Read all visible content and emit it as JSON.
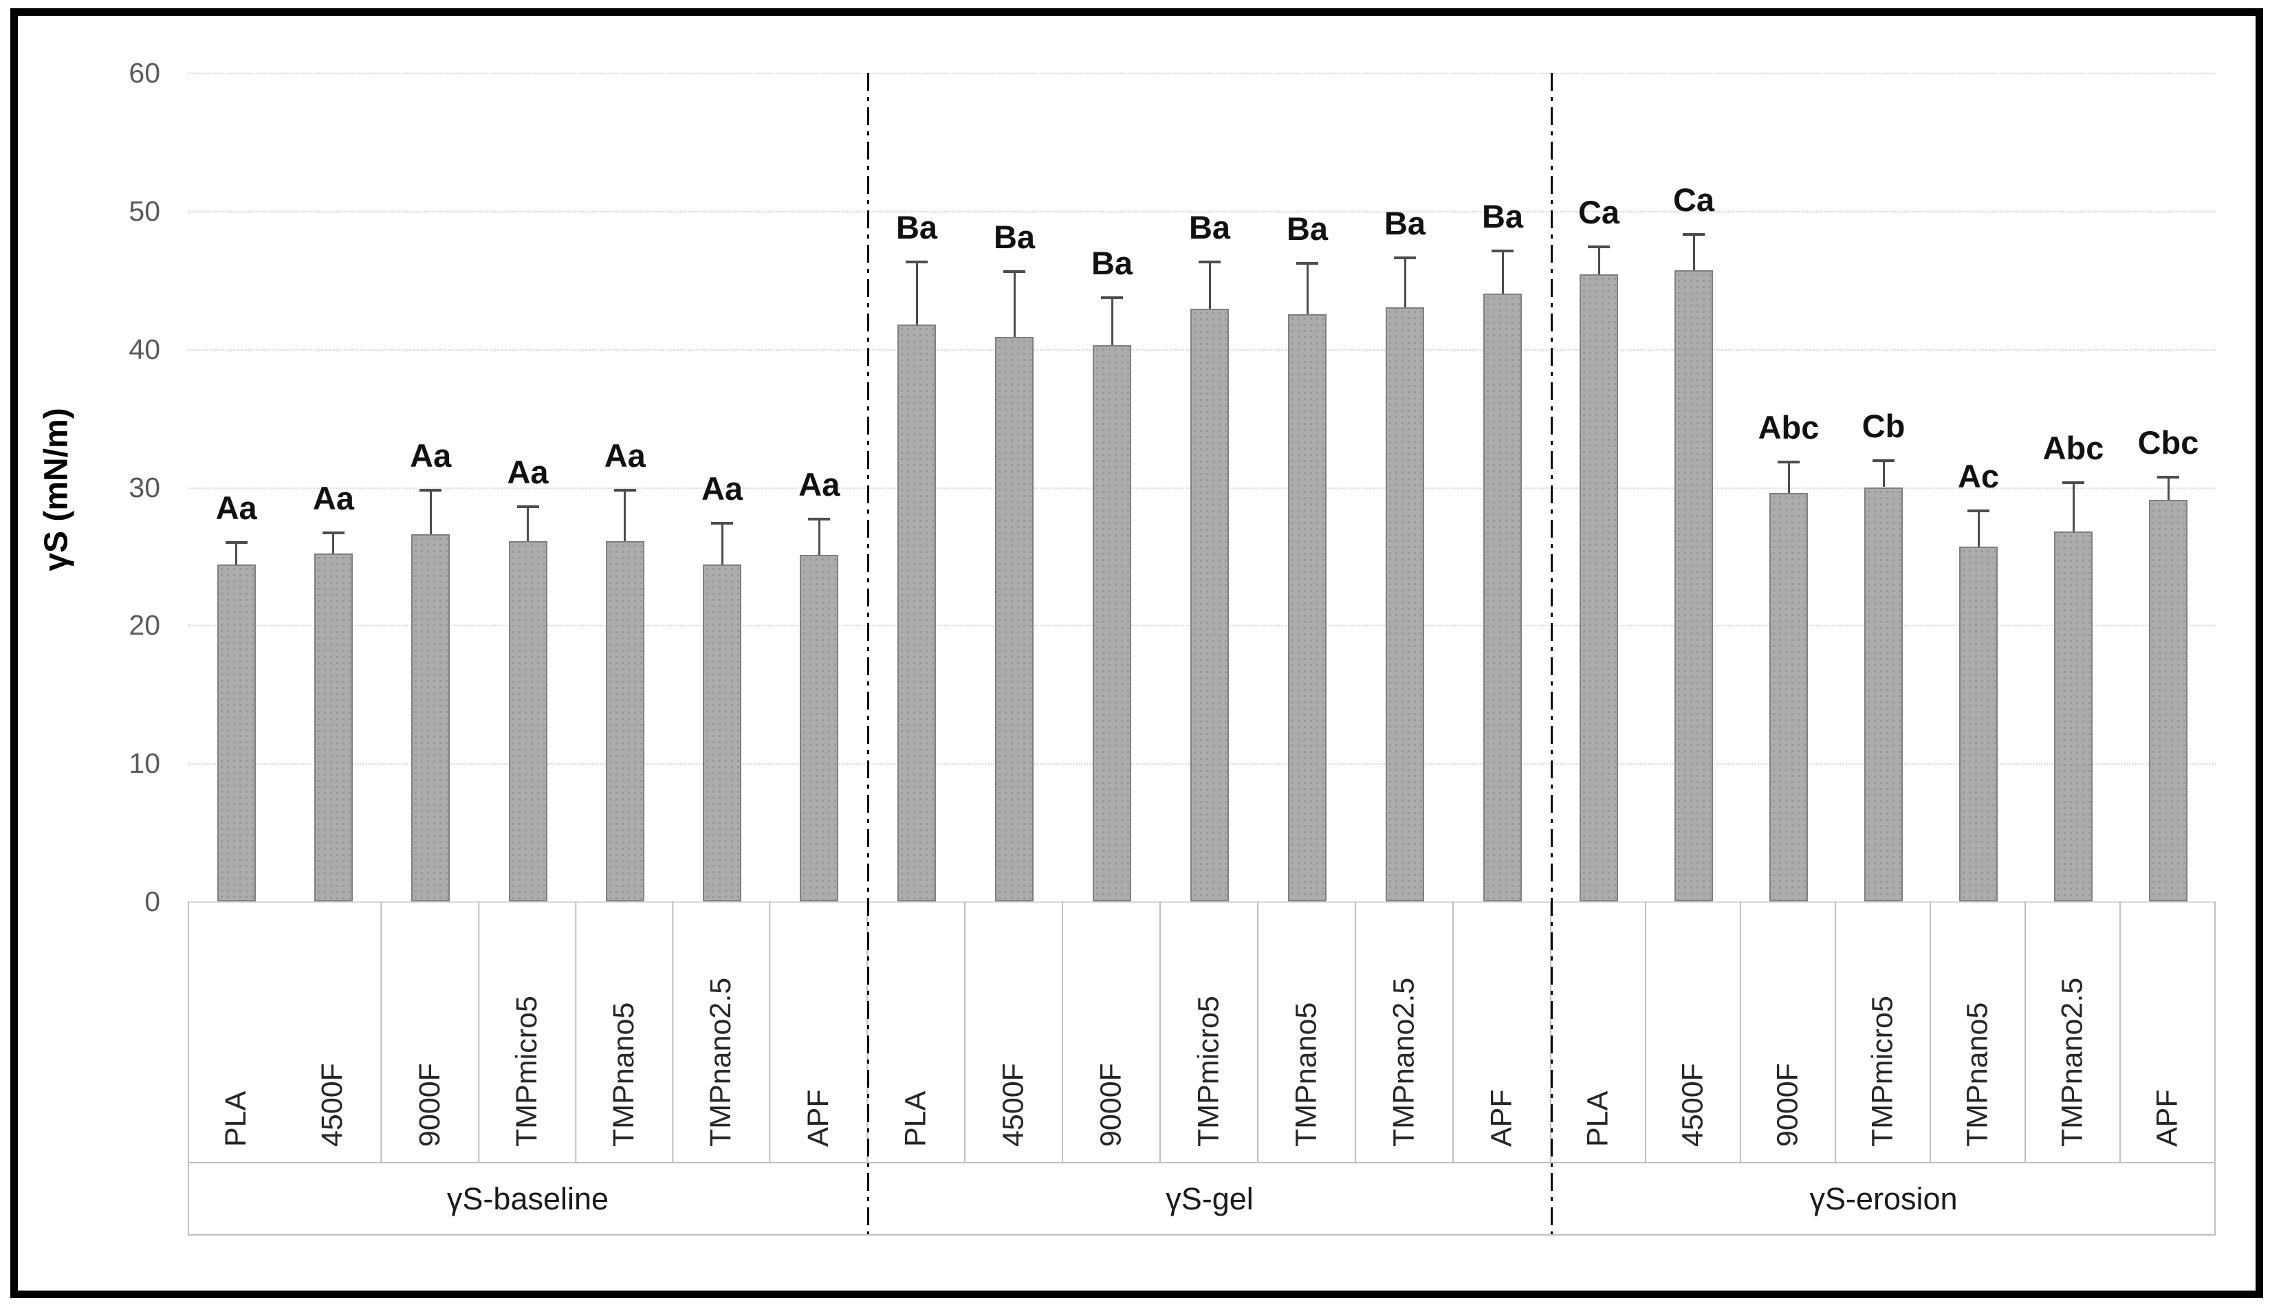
{
  "chart_data": {
    "type": "bar",
    "title": "",
    "ylabel": "γS (mN/m)",
    "xlabel": "",
    "ylim": [
      0,
      60
    ],
    "yticks": [
      0,
      10,
      20,
      30,
      40,
      50,
      60
    ],
    "grid": "horizontal dotted light-gray",
    "legend_position": "none",
    "error_bars": "upper only, with caps",
    "categories": [
      "PLA",
      "4500F",
      "9000F",
      "TMPmicro5",
      "TMPnano5",
      "TMPnano2.5",
      "APF"
    ],
    "groups": [
      {
        "label": "γS-baseline",
        "values": [
          24.4,
          25.2,
          26.6,
          26.1,
          26.1,
          24.4,
          25.1
        ],
        "errors_plus": [
          1.7,
          1.6,
          3.3,
          2.6,
          3.8,
          3.1,
          2.7
        ],
        "annotations": [
          "Aa",
          "Aa",
          "Aa",
          "Aa",
          "Aa",
          "Aa",
          "Aa"
        ]
      },
      {
        "label": "γS-gel",
        "values": [
          41.8,
          40.9,
          40.3,
          42.9,
          42.5,
          43.0,
          44.0
        ],
        "errors_plus": [
          4.6,
          4.8,
          3.5,
          3.5,
          3.8,
          3.7,
          3.2
        ],
        "annotations": [
          "Ba",
          "Ba",
          "Ba",
          "Ba",
          "Ba",
          "Ba",
          "Ba"
        ]
      },
      {
        "label": "γS-erosion",
        "values": [
          45.4,
          45.7,
          29.6,
          30.0,
          25.7,
          26.8,
          29.1
        ],
        "errors_plus": [
          2.1,
          2.7,
          2.3,
          2.0,
          2.7,
          3.6,
          1.7
        ],
        "annotations": [
          "Ca",
          "Ca",
          "Abc",
          "Cb",
          "Ac",
          "Abc",
          "Cbc"
        ]
      }
    ]
  },
  "colors": {
    "bar_fill": "#acacac",
    "bar_dot": "#969696",
    "bar_border": "#7f7f7f",
    "error_bar": "#4d4d4d",
    "gridline": "#d9d9d9",
    "tick_label": "#595959",
    "annotation": "#111111",
    "table_border": "#bfbfbf",
    "group_divider": "#0a0a0a",
    "frame": "#000000",
    "background": "#ffffff"
  }
}
